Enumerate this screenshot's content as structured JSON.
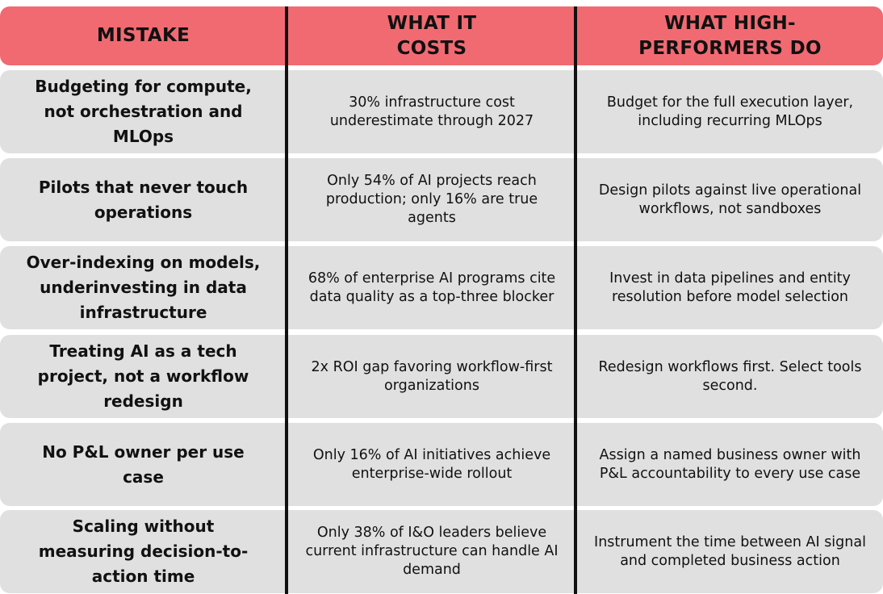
{
  "table": {
    "columns": [
      "MISTAKE",
      "WHAT IT COSTS",
      "WHAT HIGH-PERFORMERS DO"
    ],
    "rows": [
      [
        "Budgeting for compute, not orchestration and MLOps",
        "30% infrastructure cost underestimate through 2027",
        "Budget for the full execution layer, including recurring MLOps"
      ],
      [
        "Pilots that never touch operations",
        "Only 54% of AI projects reach production; only 16% are true agents",
        "Design pilots against live operational workflows, not sandboxes"
      ],
      [
        "Over-indexing on models, underinvesting in data infrastructure",
        "68% of enterprise AI programs cite data quality as a top-three blocker",
        "Invest in data pipelines and entity resolution before model selection"
      ],
      [
        "Treating AI as a tech project, not a workflow redesign",
        "2x ROI gap favoring workflow-first organizations",
        "Redesign workflows first. Select tools second."
      ],
      [
        "No P&L owner per use case",
        "Only 16% of AI initiatives achieve enterprise-wide rollout",
        "Assign a named business owner with P&L accountability to every use case"
      ],
      [
        "Scaling without measuring decision-to-action time",
        "Only 38% of I&O leaders believe current infrastructure can handle AI demand",
        "Instrument the time between AI signal and completed business action"
      ]
    ]
  }
}
